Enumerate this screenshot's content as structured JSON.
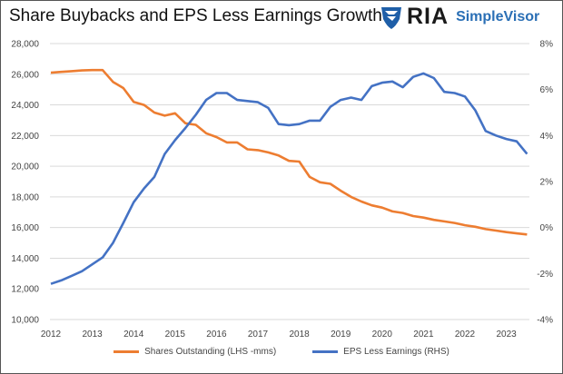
{
  "header": {
    "title": "Share Buybacks and EPS Less Earnings Growth",
    "logo_text": "RIA",
    "logo_sub": "SimpleVisor"
  },
  "chart_data": {
    "type": "line",
    "title": "Share Buybacks and EPS Less Earnings Growth",
    "x": [
      2012,
      2012.25,
      2012.5,
      2012.75,
      2013,
      2013.25,
      2013.5,
      2013.75,
      2014,
      2014.25,
      2014.5,
      2014.75,
      2015,
      2015.25,
      2015.5,
      2015.75,
      2016,
      2016.25,
      2016.5,
      2016.75,
      2017,
      2017.25,
      2017.5,
      2017.75,
      2018,
      2018.25,
      2018.5,
      2018.75,
      2019,
      2019.25,
      2019.5,
      2019.75,
      2020,
      2020.25,
      2020.5,
      2020.75,
      2021,
      2021.25,
      2021.5,
      2021.75,
      2022,
      2022.25,
      2022.5,
      2022.75,
      2023,
      2023.25,
      2023.5
    ],
    "x_ticks": [
      "2012",
      "2013",
      "2014",
      "2015",
      "2016",
      "2017",
      "2018",
      "2019",
      "2020",
      "2021",
      "2022",
      "2023"
    ],
    "y_left": {
      "lim": [
        10000,
        28000
      ],
      "ticks": [
        "10,000",
        "12,000",
        "14,000",
        "16,000",
        "18,000",
        "20,000",
        "22,000",
        "24,000",
        "26,000",
        "28,000"
      ]
    },
    "y_right": {
      "lim": [
        -4,
        8
      ],
      "ticks": [
        "-4%",
        "-2%",
        "0%",
        "2%",
        "4%",
        "6%",
        "8%"
      ]
    },
    "grid": true,
    "legend": "bottom",
    "series": [
      {
        "name": "Shares Outstanding (LHS -mms)",
        "axis": "left",
        "color": "#ED7D31",
        "values": [
          26100,
          26150,
          26200,
          26250,
          26270,
          26270,
          25500,
          25100,
          24200,
          24000,
          23500,
          23300,
          23450,
          22800,
          22700,
          22150,
          21900,
          21550,
          21550,
          21100,
          21050,
          20900,
          20700,
          20350,
          20300,
          19300,
          18950,
          18850,
          18400,
          18000,
          17700,
          17450,
          17300,
          17050,
          16950,
          16750,
          16650,
          16500,
          16400,
          16300,
          16150,
          16050,
          15900,
          15800,
          15700,
          15620,
          15550
        ]
      },
      {
        "name": "EPS Less Earnings (RHS)",
        "axis": "right",
        "color": "#4472C4",
        "values": [
          -2.45,
          -2.3,
          -2.1,
          -1.9,
          -1.6,
          -1.3,
          -0.67,
          0.2,
          1.1,
          1.7,
          2.2,
          3.2,
          3.8,
          4.33,
          4.9,
          5.55,
          5.85,
          5.85,
          5.55,
          5.5,
          5.45,
          5.2,
          4.5,
          4.45,
          4.5,
          4.65,
          4.65,
          5.25,
          5.55,
          5.65,
          5.55,
          6.15,
          6.3,
          6.35,
          6.1,
          6.55,
          6.7,
          6.5,
          5.9,
          5.85,
          5.7,
          5.1,
          4.2,
          4.0,
          3.85,
          3.75,
          3.2
        ]
      }
    ]
  }
}
